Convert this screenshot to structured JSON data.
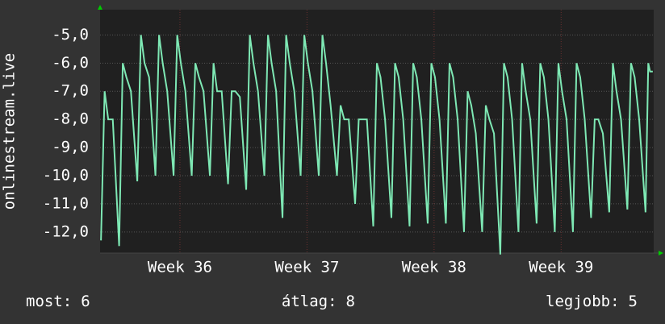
{
  "chart_data": {
    "type": "line",
    "ylabel": "onlinestream.live",
    "xlim": [
      0,
      30.5
    ],
    "xticks": [
      {
        "value": 4.4,
        "label": "Week 36"
      },
      {
        "value": 11.4,
        "label": "Week 37"
      },
      {
        "value": 18.4,
        "label": "Week 38"
      },
      {
        "value": 25.4,
        "label": "Week 39"
      }
    ],
    "ylim": [
      -12.75,
      -4.1
    ],
    "yticks": [
      {
        "value": -5,
        "label": "-5,0"
      },
      {
        "value": -6,
        "label": "-6,0"
      },
      {
        "value": -7,
        "label": "-7,0"
      },
      {
        "value": -8,
        "label": "-8,0"
      },
      {
        "value": -9,
        "label": "-9,0"
      },
      {
        "value": -10,
        "label": "-10,0"
      },
      {
        "value": -11,
        "label": "-11,0"
      },
      {
        "value": -12,
        "label": "-12,0"
      }
    ],
    "grid": true,
    "series": [
      {
        "name": "onlinestream.live",
        "color": "#7ee8b4",
        "x": [
          0.05,
          0.25,
          0.45,
          0.7,
          1.05,
          1.25,
          1.45,
          1.7,
          2.05,
          2.25,
          2.45,
          2.7,
          3.05,
          3.25,
          3.45,
          3.7,
          4.05,
          4.25,
          4.45,
          4.7,
          5.05,
          5.25,
          5.45,
          5.7,
          6.05,
          6.25,
          6.45,
          6.7,
          7.05,
          7.25,
          7.45,
          7.7,
          8.05,
          8.25,
          8.45,
          8.7,
          9.05,
          9.25,
          9.45,
          9.7,
          10.05,
          10.25,
          10.45,
          10.7,
          11.05,
          11.25,
          11.45,
          11.7,
          12.05,
          12.25,
          12.45,
          12.7,
          13.05,
          13.25,
          13.45,
          13.7,
          14.05,
          14.25,
          14.45,
          14.7,
          15.05,
          15.25,
          15.45,
          15.7,
          16.05,
          16.25,
          16.45,
          16.7,
          17.05,
          17.25,
          17.45,
          17.7,
          18.05,
          18.25,
          18.45,
          18.7,
          19.05,
          19.25,
          19.45,
          19.7,
          20.05,
          20.25,
          20.45,
          20.7,
          21.05,
          21.25,
          21.45,
          21.7,
          22.05,
          22.25,
          22.45,
          22.7,
          23.05,
          23.25,
          23.45,
          23.7,
          24.05,
          24.25,
          24.45,
          24.7,
          25.05,
          25.25,
          25.45,
          25.7,
          26.05,
          26.25,
          26.45,
          26.7,
          27.05,
          27.25,
          27.45,
          27.7,
          28.05,
          28.25,
          28.45,
          28.7,
          29.05,
          29.25,
          29.45,
          29.7,
          30.05,
          30.2,
          30.3,
          30.45
        ],
        "values": [
          -12.3,
          -7,
          -8,
          -8,
          -12.5,
          -6,
          -6.5,
          -7,
          -10.2,
          -5,
          -6,
          -6.5,
          -10,
          -5,
          -6,
          -7,
          -10,
          -5,
          -6,
          -7,
          -10,
          -6,
          -6.5,
          -7,
          -10,
          -6,
          -7,
          -7,
          -10.3,
          -7,
          -7,
          -7.2,
          -10.5,
          -5,
          -6,
          -7,
          -10,
          -5,
          -6,
          -7,
          -11.5,
          -5,
          -6,
          -7,
          -10,
          -5,
          -6,
          -7,
          -10,
          -5,
          -6,
          -7.5,
          -10,
          -7.5,
          -8,
          -8,
          -11,
          -8,
          -8,
          -8,
          -11.8,
          -6,
          -6.5,
          -8,
          -11.5,
          -6,
          -6.5,
          -8,
          -11.8,
          -6,
          -6.5,
          -8,
          -11.7,
          -6,
          -6.5,
          -8,
          -11.7,
          -6,
          -6.5,
          -8,
          -12,
          -7,
          -7.5,
          -8.5,
          -12,
          -7.5,
          -8,
          -8.5,
          -12.8,
          -6,
          -6.5,
          -8,
          -12,
          -6,
          -7,
          -8,
          -11.7,
          -6,
          -6.5,
          -8,
          -12,
          -6,
          -7,
          -8,
          -12,
          -6,
          -6.5,
          -8,
          -11.5,
          -8,
          -8,
          -8.5,
          -11.3,
          -6,
          -7,
          -8,
          -11.2,
          -6,
          -6.5,
          -8,
          -11.3,
          -6,
          -6.3,
          -6.3
        ]
      }
    ]
  },
  "footer": [
    {
      "label": "most:",
      "value": 6
    },
    {
      "label": "átlag:",
      "value": 8
    },
    {
      "label": "legjobb:",
      "value": 5
    }
  ]
}
